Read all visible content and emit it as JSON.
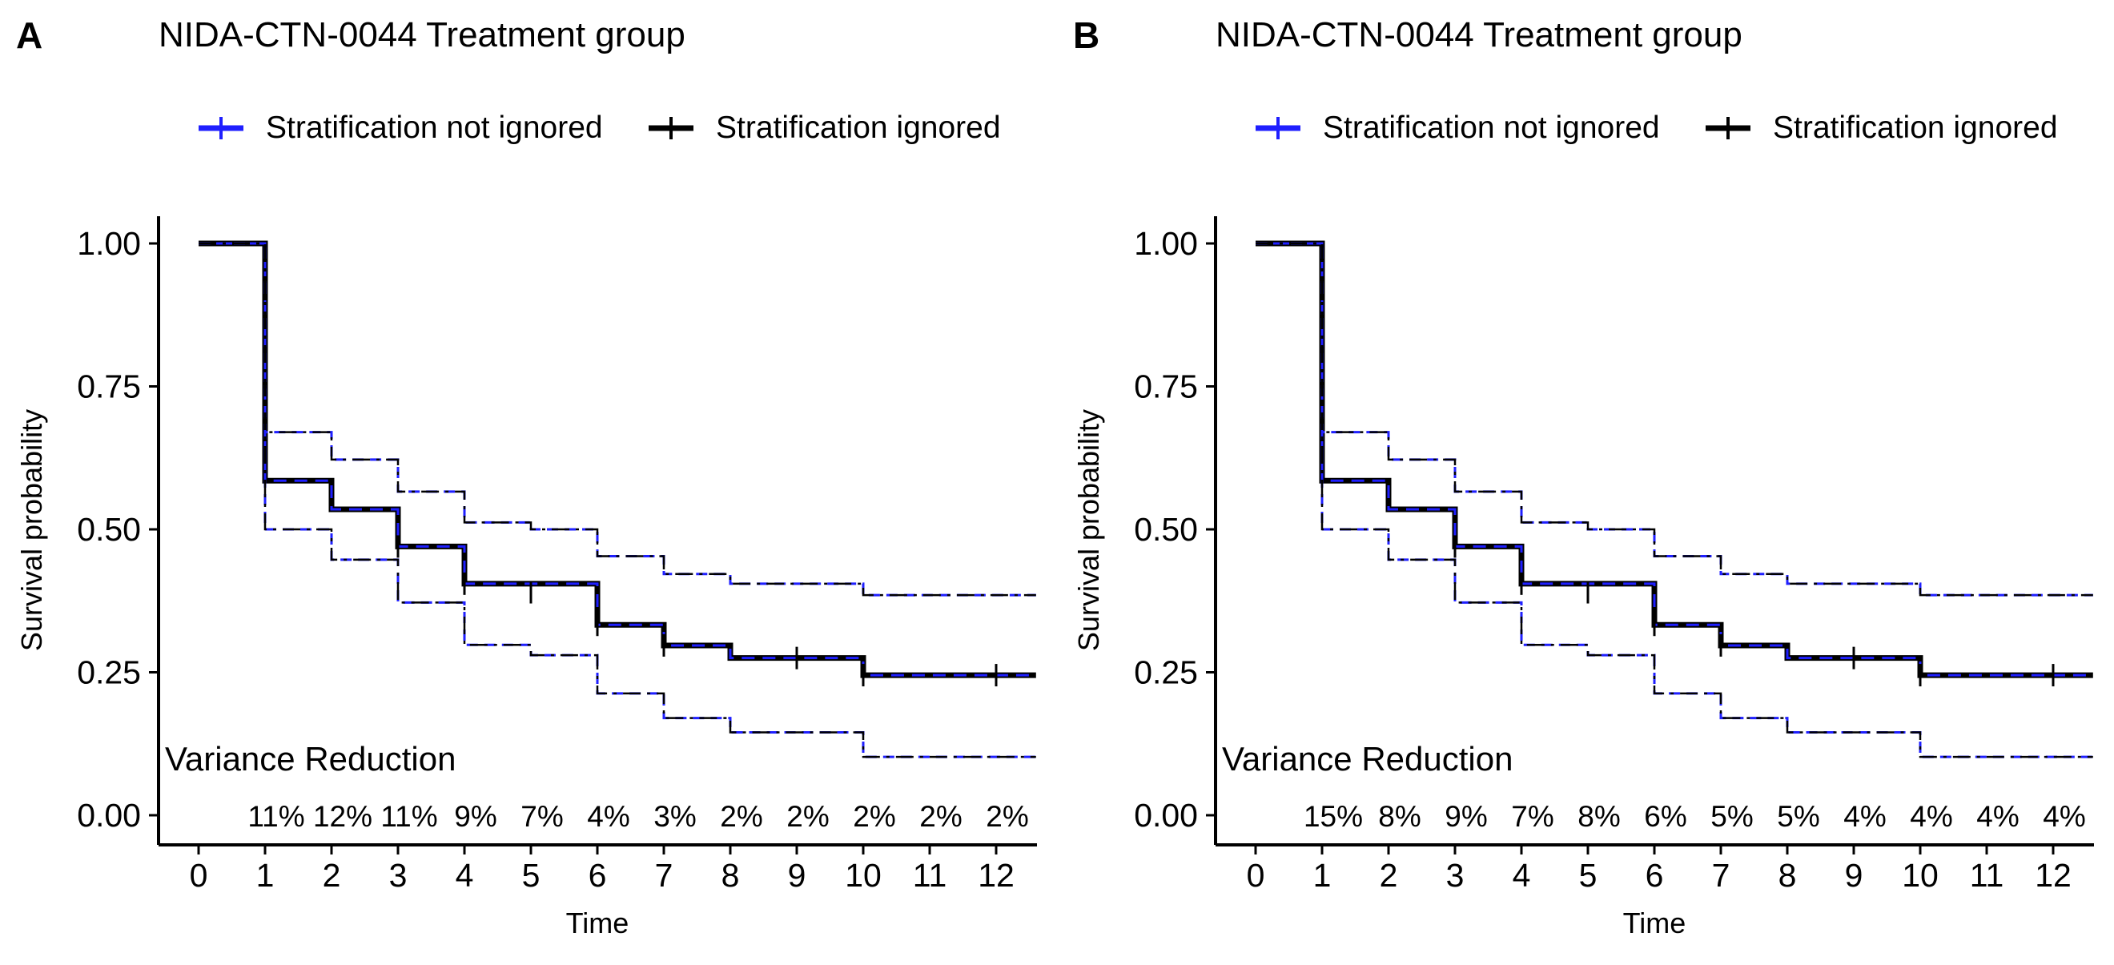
{
  "chart_data": [
    {
      "type": "line",
      "panel": "A",
      "title": "NIDA-CTN-0044 Treatment group",
      "xlabel": "Time",
      "ylabel": "Survival probability",
      "xlim": [
        0,
        12.6
      ],
      "ylim": [
        0,
        1.05
      ],
      "xticks": [
        "0",
        "1",
        "2",
        "3",
        "4",
        "5",
        "6",
        "7",
        "8",
        "9",
        "10",
        "11",
        "12"
      ],
      "yticks": [
        "0.00",
        "0.25",
        "0.50",
        "0.75",
        "1.00"
      ],
      "legend": [
        "Stratification not ignored",
        "Stratification ignored"
      ],
      "legend_position": "top",
      "colors": {
        "not_ignored": "#1f1fff",
        "ignored": "#000000"
      },
      "series": [
        {
          "name": "Stratification ignored",
          "role": "estimate",
          "x": [
            0,
            1,
            2,
            3,
            4,
            6,
            7,
            8,
            10,
            12.6
          ],
          "y": [
            1.0,
            0.585,
            0.535,
            0.47,
            0.405,
            0.333,
            0.297,
            0.275,
            0.245,
            0.245
          ]
        },
        {
          "name": "Stratification not ignored",
          "role": "estimate",
          "x": [
            0,
            1,
            2,
            3,
            4,
            6,
            7,
            8,
            10,
            12.6
          ],
          "y": [
            1.0,
            0.585,
            0.535,
            0.47,
            0.405,
            0.333,
            0.297,
            0.275,
            0.245,
            0.245
          ]
        },
        {
          "role": "upper-ci",
          "x": [
            0,
            1,
            2,
            3,
            4,
            5,
            6,
            7,
            8,
            10,
            12.6
          ],
          "y": [
            1.0,
            0.67,
            0.622,
            0.566,
            0.512,
            0.5,
            0.453,
            0.422,
            0.405,
            0.385,
            0.385
          ]
        },
        {
          "role": "lower-ci",
          "x": [
            0,
            1,
            2,
            3,
            4,
            5,
            6,
            7,
            8,
            10,
            12.6
          ],
          "y": [
            1.0,
            0.5,
            0.447,
            0.372,
            0.298,
            0.28,
            0.213,
            0.17,
            0.145,
            0.102,
            0.102
          ]
        }
      ],
      "censor_marks": {
        "x": [
          3,
          4,
          5,
          6,
          7,
          9,
          10,
          12
        ],
        "y": [
          0.47,
          0.405,
          0.39,
          0.333,
          0.297,
          0.275,
          0.245,
          0.245
        ]
      },
      "annotation": {
        "title": "Variance Reduction",
        "x": [
          1,
          2,
          3,
          4,
          5,
          6,
          7,
          8,
          9,
          10,
          11,
          12
        ],
        "values": [
          "11%",
          "12%",
          "11%",
          "9%",
          "7%",
          "4%",
          "3%",
          "2%",
          "2%",
          "2%",
          "2%",
          "2%"
        ]
      }
    },
    {
      "type": "line",
      "panel": "B",
      "title": "NIDA-CTN-0044 Treatment group",
      "xlabel": "Time",
      "ylabel": "Survival probability",
      "xlim": [
        0,
        12.6
      ],
      "ylim": [
        0,
        1.05
      ],
      "xticks": [
        "0",
        "1",
        "2",
        "3",
        "4",
        "5",
        "6",
        "7",
        "8",
        "9",
        "10",
        "11",
        "12"
      ],
      "yticks": [
        "0.00",
        "0.25",
        "0.50",
        "0.75",
        "1.00"
      ],
      "legend": [
        "Stratification not ignored",
        "Stratification ignored"
      ],
      "legend_position": "top",
      "colors": {
        "not_ignored": "#1f1fff",
        "ignored": "#000000"
      },
      "series": [
        {
          "name": "Stratification ignored",
          "role": "estimate",
          "x": [
            0,
            1,
            2,
            3,
            4,
            6,
            7,
            8,
            10,
            12.6
          ],
          "y": [
            1.0,
            0.585,
            0.535,
            0.47,
            0.405,
            0.333,
            0.297,
            0.275,
            0.245,
            0.245
          ]
        },
        {
          "name": "Stratification not ignored",
          "role": "estimate",
          "x": [
            0,
            1,
            2,
            3,
            4,
            6,
            7,
            8,
            10,
            12.6
          ],
          "y": [
            1.0,
            0.585,
            0.535,
            0.47,
            0.405,
            0.333,
            0.297,
            0.275,
            0.245,
            0.245
          ]
        },
        {
          "role": "upper-ci",
          "x": [
            0,
            1,
            2,
            3,
            4,
            5,
            6,
            7,
            8,
            10,
            12.6
          ],
          "y": [
            1.0,
            0.67,
            0.622,
            0.566,
            0.512,
            0.5,
            0.453,
            0.422,
            0.405,
            0.385,
            0.385
          ]
        },
        {
          "role": "lower-ci",
          "x": [
            0,
            1,
            2,
            3,
            4,
            5,
            6,
            7,
            8,
            10,
            12.6
          ],
          "y": [
            1.0,
            0.5,
            0.447,
            0.372,
            0.298,
            0.28,
            0.213,
            0.17,
            0.145,
            0.102,
            0.102
          ]
        }
      ],
      "censor_marks": {
        "x": [
          3,
          4,
          5,
          6,
          7,
          9,
          10,
          12
        ],
        "y": [
          0.47,
          0.405,
          0.39,
          0.333,
          0.297,
          0.275,
          0.245,
          0.245
        ]
      },
      "annotation": {
        "title": "Variance Reduction",
        "x": [
          1,
          2,
          3,
          4,
          5,
          6,
          7,
          8,
          9,
          10,
          11,
          12
        ],
        "values": [
          "15%",
          "8%",
          "9%",
          "7%",
          "8%",
          "6%",
          "5%",
          "5%",
          "4%",
          "4%",
          "4%",
          "4%"
        ]
      }
    }
  ]
}
